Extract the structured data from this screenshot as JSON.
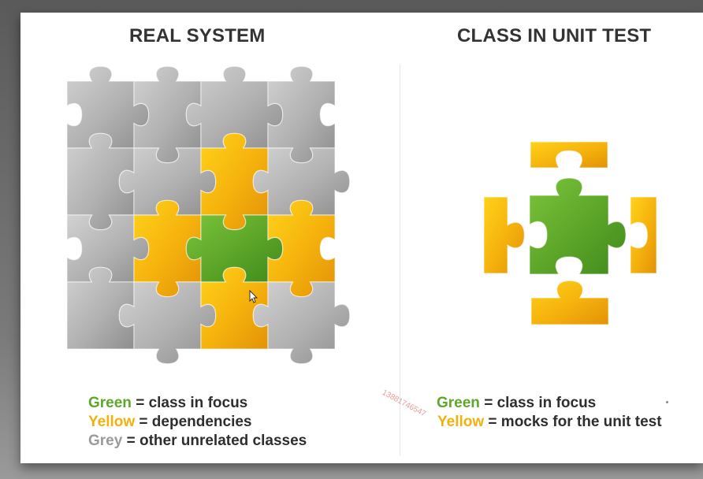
{
  "titles": {
    "left": "REAL SYSTEM",
    "right": "CLASS IN UNIT TEST"
  },
  "colors": {
    "green": "#5da82b",
    "yellow": "#f3b10c",
    "grey": "#b4b4b4",
    "background": "#ffffff",
    "title": "#333333"
  },
  "real_system_grid": {
    "rows": 4,
    "cols": 4,
    "pieces": [
      [
        "grey",
        "grey",
        "grey",
        "grey"
      ],
      [
        "grey",
        "grey",
        "yellow",
        "grey"
      ],
      [
        "grey",
        "yellow",
        "green",
        "yellow"
      ],
      [
        "grey",
        "grey",
        "yellow",
        "grey"
      ]
    ]
  },
  "unit_test_pieces": [
    {
      "role": "class-in-focus",
      "color": "green"
    },
    {
      "role": "mock-top",
      "color": "yellow"
    },
    {
      "role": "mock-left",
      "color": "yellow"
    },
    {
      "role": "mock-right",
      "color": "yellow"
    },
    {
      "role": "mock-bottom",
      "color": "yellow"
    }
  ],
  "legend_left": [
    {
      "term": "Green",
      "desc": " = class in focus"
    },
    {
      "term": "Yellow",
      "desc": " = dependencies"
    },
    {
      "term": "Grey",
      "desc": " = other unrelated classes"
    }
  ],
  "legend_right": [
    {
      "term": "Green",
      "desc": " = class in focus"
    },
    {
      "term": "Yellow",
      "desc": " = mocks for the unit test"
    }
  ],
  "watermark": "13881746547"
}
